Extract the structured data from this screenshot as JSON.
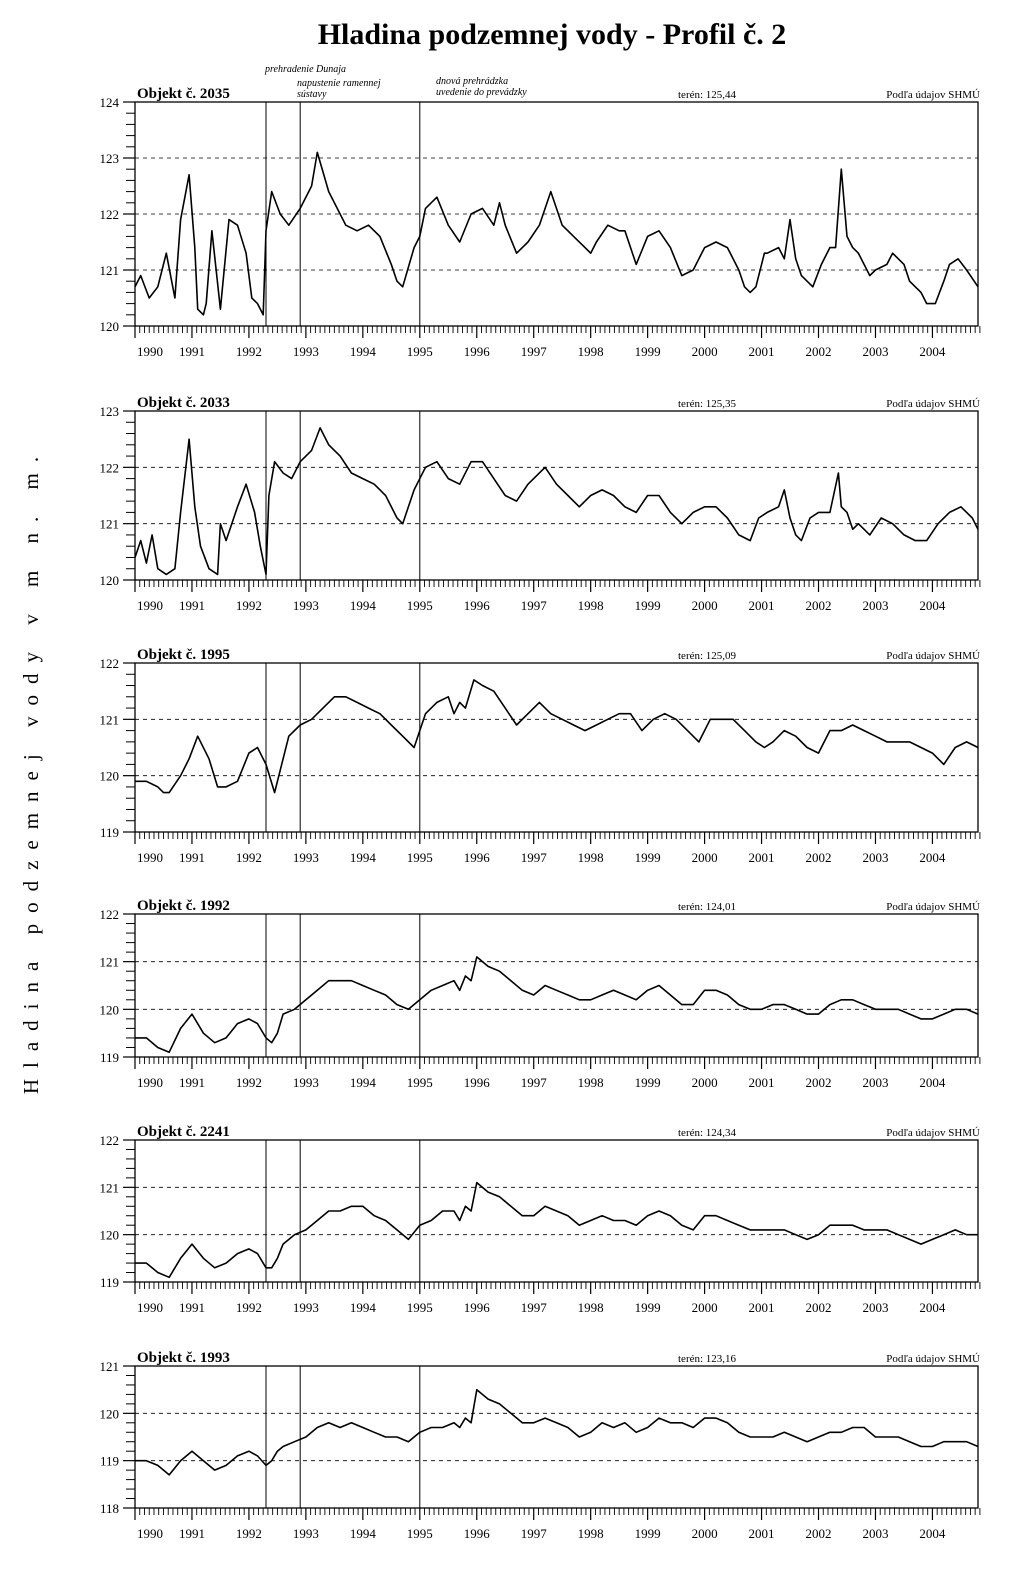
{
  "title": "Hladina podzemnej vody  - Profil č. 2",
  "y_axis_label": "Hladina podzemnej vody v m n. m.",
  "annotations": [
    {
      "lines": [
        "prehradenie Dunaja"
      ]
    },
    {
      "lines": [
        "napustenie ramennej",
        "sústavy"
      ]
    },
    {
      "lines": [
        "dnová prehrádzka",
        "uvedenie do prevádzky"
      ]
    }
  ],
  "x_tick_labels": [
    "1990",
    "1991",
    "1992",
    "1993",
    "1994",
    "1995",
    "1996",
    "1997",
    "1998",
    "1999",
    "2000",
    "2001",
    "2002",
    "2003",
    "2004"
  ],
  "chart_data": [
    {
      "type": "line",
      "name": "Objekt č. 2035",
      "terrain": "terén: 125,44",
      "source": "Podľa údajov SHMÚ",
      "xlim": [
        1990.0,
        2004.8
      ],
      "ylim": [
        120,
        124
      ],
      "yticks": [
        120,
        121,
        122,
        123,
        124
      ],
      "grid": "dashed",
      "event_lines": [
        1992.3,
        1992.9,
        1995.0
      ],
      "x": [
        1990.0,
        1990.1,
        1990.25,
        1990.4,
        1990.55,
        1990.7,
        1990.8,
        1990.95,
        1991.05,
        1991.1,
        1991.2,
        1991.25,
        1991.35,
        1991.5,
        1991.65,
        1991.8,
        1991.95,
        1992.05,
        1992.15,
        1992.25,
        1992.3,
        1992.4,
        1992.55,
        1992.7,
        1992.9,
        1993.1,
        1993.2,
        1993.4,
        1993.6,
        1993.7,
        1993.9,
        1994.1,
        1994.3,
        1994.5,
        1994.6,
        1994.7,
        1994.9,
        1995.0,
        1995.1,
        1995.3,
        1995.5,
        1995.7,
        1995.9,
        1996.1,
        1996.3,
        1996.4,
        1996.5,
        1996.7,
        1996.9,
        1997.1,
        1997.3,
        1997.5,
        1997.7,
        1997.9,
        1998.0,
        1998.1,
        1998.3,
        1998.5,
        1998.6,
        1998.8,
        1999.0,
        1999.2,
        1999.4,
        1999.6,
        1999.8,
        2000.0,
        2000.2,
        2000.4,
        2000.6,
        2000.7,
        2000.8,
        2000.9,
        2001.05,
        2001.1,
        2001.3,
        2001.4,
        2001.5,
        2001.6,
        2001.7,
        2001.8,
        2001.9,
        2002.05,
        2002.2,
        2002.3,
        2002.4,
        2002.5,
        2002.6,
        2002.7,
        2002.9,
        2003.0,
        2003.2,
        2003.3,
        2003.5,
        2003.6,
        2003.8,
        2003.9,
        2004.05,
        2004.2,
        2004.3,
        2004.45,
        2004.6,
        2004.8
      ],
      "y": [
        120.7,
        120.9,
        120.5,
        120.7,
        121.3,
        120.5,
        121.9,
        122.7,
        121.4,
        120.3,
        120.2,
        120.4,
        121.7,
        120.3,
        121.9,
        121.8,
        121.3,
        120.5,
        120.4,
        120.2,
        121.7,
        122.4,
        122.0,
        121.8,
        122.1,
        122.5,
        123.1,
        122.4,
        122.0,
        121.8,
        121.7,
        121.8,
        121.6,
        121.1,
        120.8,
        120.7,
        121.4,
        121.6,
        122.1,
        122.3,
        121.8,
        121.5,
        122.0,
        122.1,
        121.8,
        122.2,
        121.8,
        121.3,
        121.5,
        121.8,
        122.4,
        121.8,
        121.6,
        121.4,
        121.3,
        121.5,
        121.8,
        121.7,
        121.7,
        121.1,
        121.6,
        121.7,
        121.4,
        120.9,
        121.0,
        121.4,
        121.5,
        121.4,
        121.0,
        120.7,
        120.6,
        120.7,
        121.3,
        121.3,
        121.4,
        121.2,
        121.9,
        121.2,
        120.9,
        120.8,
        120.7,
        121.1,
        121.4,
        121.4,
        122.8,
        121.6,
        121.4,
        121.3,
        120.9,
        121.0,
        121.1,
        121.3,
        121.1,
        120.8,
        120.6,
        120.4,
        120.4,
        120.8,
        121.1,
        121.2,
        121.0,
        120.7
      ]
    },
    {
      "type": "line",
      "name": "Objekt č. 2033",
      "terrain": "terén: 125,35",
      "source": "Podľa údajov SHMÚ",
      "xlim": [
        1990.0,
        2004.8
      ],
      "ylim": [
        120,
        123
      ],
      "yticks": [
        120,
        121,
        122,
        123
      ],
      "grid": "dashed",
      "event_lines": [
        1992.3,
        1992.9,
        1995.0
      ],
      "x": [
        1990.0,
        1990.1,
        1990.2,
        1990.3,
        1990.4,
        1990.55,
        1990.7,
        1990.8,
        1990.95,
        1991.05,
        1991.15,
        1991.3,
        1991.45,
        1991.5,
        1991.6,
        1991.8,
        1991.95,
        1992.1,
        1992.2,
        1992.3,
        1992.35,
        1992.45,
        1992.6,
        1992.75,
        1992.9,
        1993.1,
        1993.25,
        1993.4,
        1993.6,
        1993.8,
        1994.0,
        1994.2,
        1994.4,
        1994.6,
        1994.7,
        1994.9,
        1995.1,
        1995.3,
        1995.5,
        1995.7,
        1995.9,
        1996.1,
        1996.3,
        1996.5,
        1996.7,
        1996.9,
        1997.0,
        1997.2,
        1997.4,
        1997.6,
        1997.8,
        1998.0,
        1998.2,
        1998.4,
        1998.6,
        1998.8,
        1999.0,
        1999.2,
        1999.4,
        1999.6,
        1999.8,
        2000.0,
        2000.2,
        2000.4,
        2000.6,
        2000.8,
        2000.95,
        2001.1,
        2001.3,
        2001.4,
        2001.5,
        2001.6,
        2001.7,
        2001.85,
        2002.0,
        2002.2,
        2002.35,
        2002.4,
        2002.5,
        2002.6,
        2002.7,
        2002.9,
        2003.1,
        2003.3,
        2003.5,
        2003.7,
        2003.9,
        2004.1,
        2004.3,
        2004.5,
        2004.7,
        2004.8
      ],
      "y": [
        120.4,
        120.7,
        120.3,
        120.8,
        120.2,
        120.1,
        120.2,
        121.2,
        122.5,
        121.3,
        120.6,
        120.2,
        120.1,
        121.0,
        120.7,
        121.3,
        121.7,
        121.2,
        120.6,
        120.1,
        121.5,
        122.1,
        121.9,
        121.8,
        122.1,
        122.3,
        122.7,
        122.4,
        122.2,
        121.9,
        121.8,
        121.7,
        121.5,
        121.1,
        121.0,
        121.6,
        122.0,
        122.1,
        121.8,
        121.7,
        122.1,
        122.1,
        121.8,
        121.5,
        121.4,
        121.7,
        121.8,
        122.0,
        121.7,
        121.5,
        121.3,
        121.5,
        121.6,
        121.5,
        121.3,
        121.2,
        121.5,
        121.5,
        121.2,
        121.0,
        121.2,
        121.3,
        121.3,
        121.1,
        120.8,
        120.7,
        121.1,
        121.2,
        121.3,
        121.6,
        121.1,
        120.8,
        120.7,
        121.1,
        121.2,
        121.2,
        121.9,
        121.3,
        121.2,
        120.9,
        121.0,
        120.8,
        121.1,
        121.0,
        120.8,
        120.7,
        120.7,
        121.0,
        121.2,
        121.3,
        121.1,
        120.9
      ]
    },
    {
      "type": "line",
      "name": "Objekt č. 1995",
      "terrain": "terén: 125,09",
      "source": "Podľa údajov SHMÚ",
      "xlim": [
        1990.0,
        2004.8
      ],
      "ylim": [
        119,
        122
      ],
      "yticks": [
        119,
        120,
        121,
        122
      ],
      "grid": "dashed",
      "event_lines": [
        1992.3,
        1992.9,
        1995.0
      ],
      "x": [
        1990.0,
        1990.2,
        1990.4,
        1990.5,
        1990.6,
        1990.8,
        1990.95,
        1991.1,
        1991.3,
        1991.45,
        1991.6,
        1991.8,
        1992.0,
        1992.15,
        1992.3,
        1992.45,
        1992.7,
        1992.9,
        1993.1,
        1993.3,
        1993.5,
        1993.7,
        1993.9,
        1994.1,
        1994.3,
        1994.5,
        1994.7,
        1994.9,
        1995.1,
        1995.3,
        1995.5,
        1995.6,
        1995.7,
        1995.8,
        1995.95,
        1996.1,
        1996.3,
        1996.5,
        1996.7,
        1996.9,
        1997.1,
        1997.3,
        1997.5,
        1997.7,
        1997.9,
        1998.1,
        1998.3,
        1998.5,
        1998.7,
        1998.9,
        1999.1,
        1999.3,
        1999.5,
        1999.7,
        1999.9,
        2000.1,
        2000.3,
        2000.5,
        2000.7,
        2000.9,
        2001.05,
        2001.2,
        2001.4,
        2001.6,
        2001.8,
        2002.0,
        2002.2,
        2002.4,
        2002.6,
        2002.8,
        2003.0,
        2003.2,
        2003.4,
        2003.6,
        2003.8,
        2004.0,
        2004.2,
        2004.4,
        2004.6,
        2004.8
      ],
      "y": [
        119.9,
        119.9,
        119.8,
        119.7,
        119.7,
        120.0,
        120.3,
        120.7,
        120.3,
        119.8,
        119.8,
        119.9,
        120.4,
        120.5,
        120.2,
        119.7,
        120.7,
        120.9,
        121.0,
        121.2,
        121.4,
        121.4,
        121.3,
        121.2,
        121.1,
        120.9,
        120.7,
        120.5,
        121.1,
        121.3,
        121.4,
        121.1,
        121.3,
        121.2,
        121.7,
        121.6,
        121.5,
        121.2,
        120.9,
        121.1,
        121.3,
        121.1,
        121.0,
        120.9,
        120.8,
        120.9,
        121.0,
        121.1,
        121.1,
        120.8,
        121.0,
        121.1,
        121.0,
        120.8,
        120.6,
        121.0,
        121.0,
        121.0,
        120.8,
        120.6,
        120.5,
        120.6,
        120.8,
        120.7,
        120.5,
        120.4,
        120.8,
        120.8,
        120.9,
        120.8,
        120.7,
        120.6,
        120.6,
        120.6,
        120.5,
        120.4,
        120.2,
        120.5,
        120.6,
        120.5
      ]
    },
    {
      "type": "line",
      "name": "Objekt č. 1992",
      "terrain": "terén: 124,01",
      "source": "Podľa údajov SHMÚ",
      "xlim": [
        1990.0,
        2004.8
      ],
      "ylim": [
        119,
        122
      ],
      "yticks": [
        119,
        120,
        121,
        122
      ],
      "grid": "dashed",
      "event_lines": [
        1992.3,
        1992.9,
        1995.0
      ],
      "x": [
        1990.0,
        1990.2,
        1990.4,
        1990.6,
        1990.8,
        1991.0,
        1991.2,
        1991.4,
        1991.6,
        1991.8,
        1992.0,
        1992.15,
        1992.3,
        1992.4,
        1992.5,
        1992.6,
        1992.8,
        1993.0,
        1993.2,
        1993.4,
        1993.6,
        1993.8,
        1994.0,
        1994.2,
        1994.4,
        1994.6,
        1994.8,
        1995.0,
        1995.2,
        1995.4,
        1995.6,
        1995.7,
        1995.8,
        1995.9,
        1996.0,
        1996.2,
        1996.4,
        1996.6,
        1996.8,
        1997.0,
        1997.2,
        1997.4,
        1997.6,
        1997.8,
        1998.0,
        1998.2,
        1998.4,
        1998.6,
        1998.8,
        1999.0,
        1999.2,
        1999.4,
        1999.6,
        1999.8,
        2000.0,
        2000.2,
        2000.4,
        2000.6,
        2000.8,
        2001.0,
        2001.2,
        2001.4,
        2001.6,
        2001.8,
        2002.0,
        2002.2,
        2002.4,
        2002.6,
        2002.8,
        2003.0,
        2003.2,
        2003.4,
        2003.6,
        2003.8,
        2004.0,
        2004.2,
        2004.4,
        2004.6,
        2004.8
      ],
      "y": [
        119.4,
        119.4,
        119.2,
        119.1,
        119.6,
        119.9,
        119.5,
        119.3,
        119.4,
        119.7,
        119.8,
        119.7,
        119.4,
        119.3,
        119.5,
        119.9,
        120.0,
        120.2,
        120.4,
        120.6,
        120.6,
        120.6,
        120.5,
        120.4,
        120.3,
        120.1,
        120.0,
        120.2,
        120.4,
        120.5,
        120.6,
        120.4,
        120.7,
        120.6,
        121.1,
        120.9,
        120.8,
        120.6,
        120.4,
        120.3,
        120.5,
        120.4,
        120.3,
        120.2,
        120.2,
        120.3,
        120.4,
        120.3,
        120.2,
        120.4,
        120.5,
        120.3,
        120.1,
        120.1,
        120.4,
        120.4,
        120.3,
        120.1,
        120.0,
        120.0,
        120.1,
        120.1,
        120.0,
        119.9,
        119.9,
        120.1,
        120.2,
        120.2,
        120.1,
        120.0,
        120.0,
        120.0,
        119.9,
        119.8,
        119.8,
        119.9,
        120.0,
        120.0,
        119.9
      ]
    },
    {
      "type": "line",
      "name": "Objekt č. 2241",
      "terrain": "terén: 124,34",
      "source": "Podľa údajov SHMÚ",
      "xlim": [
        1990.0,
        2004.8
      ],
      "ylim": [
        119,
        122
      ],
      "yticks": [
        119,
        120,
        121,
        122
      ],
      "grid": "dashed",
      "event_lines": [
        1992.3,
        1992.9,
        1995.0
      ],
      "x": [
        1990.0,
        1990.2,
        1990.4,
        1990.6,
        1990.8,
        1991.0,
        1991.2,
        1991.4,
        1991.6,
        1991.8,
        1992.0,
        1992.15,
        1992.3,
        1992.4,
        1992.5,
        1992.6,
        1992.8,
        1993.0,
        1993.2,
        1993.4,
        1993.6,
        1993.8,
        1994.0,
        1994.2,
        1994.4,
        1994.6,
        1994.8,
        1995.0,
        1995.2,
        1995.4,
        1995.6,
        1995.7,
        1995.8,
        1995.9,
        1996.0,
        1996.2,
        1996.4,
        1996.6,
        1996.8,
        1997.0,
        1997.2,
        1997.4,
        1997.6,
        1997.8,
        1998.0,
        1998.2,
        1998.4,
        1998.6,
        1998.8,
        1999.0,
        1999.2,
        1999.4,
        1999.6,
        1999.8,
        2000.0,
        2000.2,
        2000.4,
        2000.6,
        2000.8,
        2001.0,
        2001.2,
        2001.4,
        2001.6,
        2001.8,
        2002.0,
        2002.2,
        2002.4,
        2002.6,
        2002.8,
        2003.0,
        2003.2,
        2003.4,
        2003.6,
        2003.8,
        2004.0,
        2004.2,
        2004.4,
        2004.6,
        2004.8
      ],
      "y": [
        119.4,
        119.4,
        119.2,
        119.1,
        119.5,
        119.8,
        119.5,
        119.3,
        119.4,
        119.6,
        119.7,
        119.6,
        119.3,
        119.3,
        119.5,
        119.8,
        120.0,
        120.1,
        120.3,
        120.5,
        120.5,
        120.6,
        120.6,
        120.4,
        120.3,
        120.1,
        119.9,
        120.2,
        120.3,
        120.5,
        120.5,
        120.3,
        120.6,
        120.5,
        121.1,
        120.9,
        120.8,
        120.6,
        120.4,
        120.4,
        120.6,
        120.5,
        120.4,
        120.2,
        120.3,
        120.4,
        120.3,
        120.3,
        120.2,
        120.4,
        120.5,
        120.4,
        120.2,
        120.1,
        120.4,
        120.4,
        120.3,
        120.2,
        120.1,
        120.1,
        120.1,
        120.1,
        120.0,
        119.9,
        120.0,
        120.2,
        120.2,
        120.2,
        120.1,
        120.1,
        120.1,
        120.0,
        119.9,
        119.8,
        119.9,
        120.0,
        120.1,
        120.0,
        120.0
      ]
    },
    {
      "type": "line",
      "name": "Objekt č. 1993",
      "terrain": "terén: 123,16",
      "source": "Podľa údajov SHMÚ",
      "xlim": [
        1990.0,
        2004.8
      ],
      "ylim": [
        118,
        121
      ],
      "yticks": [
        118,
        119,
        120,
        121
      ],
      "grid": "dashed",
      "event_lines": [
        1992.3,
        1992.9,
        1995.0
      ],
      "x": [
        1990.0,
        1990.2,
        1990.4,
        1990.6,
        1990.8,
        1991.0,
        1991.2,
        1991.4,
        1991.6,
        1991.8,
        1992.0,
        1992.15,
        1992.3,
        1992.4,
        1992.5,
        1992.6,
        1992.8,
        1993.0,
        1993.2,
        1993.4,
        1993.6,
        1993.8,
        1994.0,
        1994.2,
        1994.4,
        1994.6,
        1994.8,
        1995.0,
        1995.2,
        1995.4,
        1995.6,
        1995.7,
        1995.8,
        1995.9,
        1996.0,
        1996.2,
        1996.4,
        1996.6,
        1996.8,
        1997.0,
        1997.2,
        1997.4,
        1997.6,
        1997.8,
        1998.0,
        1998.2,
        1998.4,
        1998.6,
        1998.8,
        1999.0,
        1999.2,
        1999.4,
        1999.6,
        1999.8,
        2000.0,
        2000.2,
        2000.4,
        2000.6,
        2000.8,
        2001.0,
        2001.2,
        2001.4,
        2001.6,
        2001.8,
        2002.0,
        2002.2,
        2002.4,
        2002.6,
        2002.8,
        2003.0,
        2003.2,
        2003.4,
        2003.6,
        2003.8,
        2004.0,
        2004.2,
        2004.4,
        2004.6,
        2004.8
      ],
      "y": [
        119.0,
        119.0,
        118.9,
        118.7,
        119.0,
        119.2,
        119.0,
        118.8,
        118.9,
        119.1,
        119.2,
        119.1,
        118.9,
        119.0,
        119.2,
        119.3,
        119.4,
        119.5,
        119.7,
        119.8,
        119.7,
        119.8,
        119.7,
        119.6,
        119.5,
        119.5,
        119.4,
        119.6,
        119.7,
        119.7,
        119.8,
        119.7,
        119.9,
        119.8,
        120.5,
        120.3,
        120.2,
        120.0,
        119.8,
        119.8,
        119.9,
        119.8,
        119.7,
        119.5,
        119.6,
        119.8,
        119.7,
        119.8,
        119.6,
        119.7,
        119.9,
        119.8,
        119.8,
        119.7,
        119.9,
        119.9,
        119.8,
        119.6,
        119.5,
        119.5,
        119.5,
        119.6,
        119.5,
        119.4,
        119.5,
        119.6,
        119.6,
        119.7,
        119.7,
        119.5,
        119.5,
        119.5,
        119.4,
        119.3,
        119.3,
        119.4,
        119.4,
        119.4,
        119.3
      ]
    }
  ]
}
